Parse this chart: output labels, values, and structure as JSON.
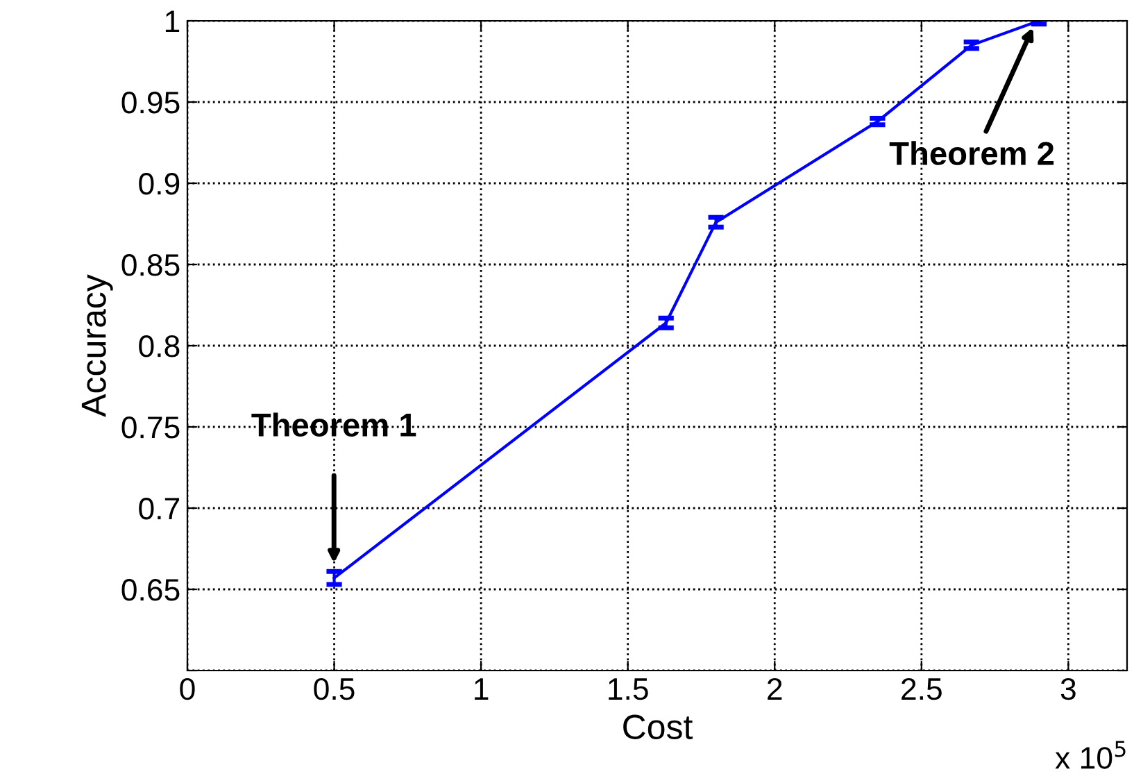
{
  "chart_data": {
    "type": "line",
    "xlabel": "Cost",
    "ylabel": "Accuracy",
    "x": [
      0.5,
      1.63,
      1.8,
      2.35,
      2.67,
      2.9
    ],
    "series": [
      {
        "color": "#0000ff",
        "values": [
          0.657,
          0.814,
          0.876,
          0.938,
          0.985,
          1.0
        ],
        "errors": [
          0.004,
          0.003,
          0.003,
          0.002,
          0.002,
          0.002
        ]
      }
    ],
    "xlim": [
      0,
      3.2
    ],
    "xticks": [
      0,
      0.5,
      1,
      1.5,
      2,
      2.5,
      3
    ],
    "ylim": [
      0.6,
      1
    ],
    "yticks": [
      {
        "value": 0.6,
        "label": null
      },
      0.65,
      0.7,
      0.75,
      0.8,
      0.85,
      0.9,
      0.95,
      1
    ],
    "grid": true,
    "line_style": "solid",
    "marker": "none",
    "annotations": [
      "Theorem 1",
      "Theorem 2",
      "x 10$^{5}$"
    ]
  }
}
